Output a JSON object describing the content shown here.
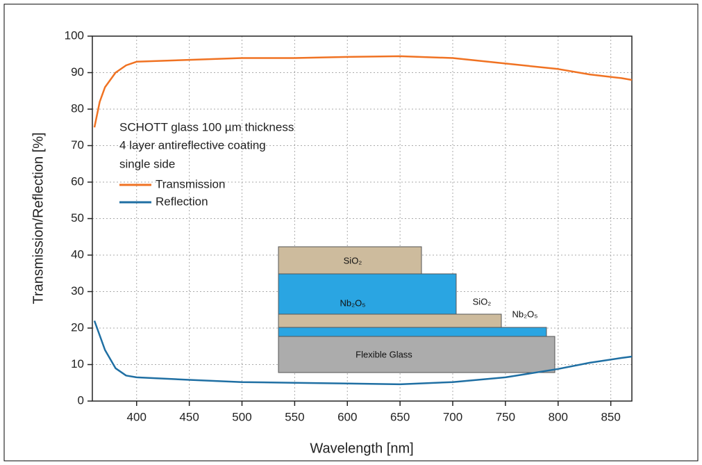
{
  "chart_data": {
    "type": "line",
    "x_label": "Wavelength [nm]",
    "y_label": "Transmission/Reflection [%]",
    "annotations": [
      "SCHOTT glass 100 µm thickness",
      "4 layer antireflective coating",
      "single side"
    ],
    "x": [
      360,
      365,
      370,
      380,
      390,
      400,
      450,
      500,
      550,
      600,
      650,
      700,
      750,
      800,
      830,
      860,
      870
    ],
    "series": [
      {
        "name": "Transmission",
        "color": "#f07222",
        "values": [
          75,
          82,
          86,
          90,
          92,
          93,
          93.5,
          94,
          94,
          94.3,
          94.5,
          94,
          92.5,
          91,
          89.5,
          88.5,
          88
        ]
      },
      {
        "name": "Reflection",
        "color": "#1f6fa3",
        "values": [
          22,
          18,
          14,
          9,
          7,
          6.5,
          5.8,
          5.2,
          5,
          4.8,
          4.6,
          5.2,
          6.5,
          8.8,
          10.5,
          11.8,
          12.2
        ]
      }
    ],
    "xlim": [
      358,
      870
    ],
    "ylim": [
      0,
      100
    ],
    "xticks": [
      400,
      450,
      500,
      550,
      600,
      650,
      700,
      750,
      800,
      850
    ],
    "yticks": [
      0,
      10,
      20,
      30,
      40,
      50,
      60,
      70,
      80,
      90,
      100
    ],
    "grid": true
  },
  "inset": {
    "labels": [
      "SiO₂",
      "Nb₂O₅",
      "SiO₂",
      "Nb₂O₅",
      "Flexible Glass"
    ]
  }
}
